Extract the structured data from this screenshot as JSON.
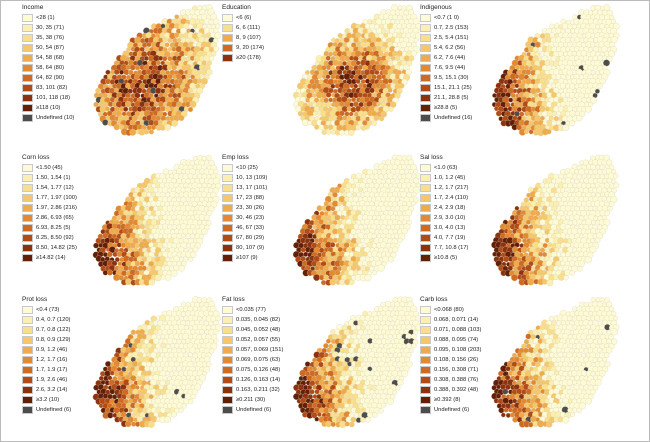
{
  "colors": {
    "undefined": "#4d4d4d",
    "ramp": [
      "#fdfbd6",
      "#fbf0b1",
      "#f9df8c",
      "#f5c76a",
      "#efaa4c",
      "#e28a33",
      "#cf6a22",
      "#b14c16",
      "#8c320f",
      "#641f08"
    ]
  },
  "panels": [
    {
      "title": "Income",
      "gradient": "west-center-dark",
      "items": [
        {
          "label": "<28 (1)",
          "cls": 0
        },
        {
          "label": "30, 35 (71)",
          "cls": 1
        },
        {
          "label": "35, 38 (76)",
          "cls": 2
        },
        {
          "label": "50, 54 (87)",
          "cls": 3
        },
        {
          "label": "54, 58 (68)",
          "cls": 4
        },
        {
          "label": "58, 64 (80)",
          "cls": 5
        },
        {
          "label": "64, 82 (90)",
          "cls": 6
        },
        {
          "label": "83, 101 (82)",
          "cls": 7
        },
        {
          "label": "101, 118 (18)",
          "cls": 8
        },
        {
          "label": "≥118 (10)",
          "cls": 9
        },
        {
          "label": "Undefined (10)",
          "cls": "undefined"
        }
      ]
    },
    {
      "title": "Education",
      "gradient": "center-dark",
      "items": [
        {
          "label": "<6 (6)",
          "cls": 0
        },
        {
          "label": "6, 6 (111)",
          "cls": 2
        },
        {
          "label": "8, 9 (107)",
          "cls": 4
        },
        {
          "label": "9, 20 (174)",
          "cls": 6
        },
        {
          "label": "≥20 (178)",
          "cls": 8
        }
      ]
    },
    {
      "title": "Indigenous",
      "gradient": "west-dark",
      "items": [
        {
          "label": "<0.7 (1 0)",
          "cls": 0
        },
        {
          "label": "0.7, 2.5 (153)",
          "cls": 1
        },
        {
          "label": "2.5, 5.4 (151)",
          "cls": 2
        },
        {
          "label": "5.4, 6.2 (56)",
          "cls": 3
        },
        {
          "label": "6.2, 7.6 (44)",
          "cls": 4
        },
        {
          "label": "7.6, 9.5 (44)",
          "cls": 5
        },
        {
          "label": "9.5, 15.1 (30)",
          "cls": 6
        },
        {
          "label": "15.1, 21.1 (25)",
          "cls": 7
        },
        {
          "label": "21.1, 28.8 (5)",
          "cls": 8
        },
        {
          "label": "≥28.8 (5)",
          "cls": 9
        },
        {
          "label": "Undefined (16)",
          "cls": "undefined"
        }
      ]
    },
    {
      "title": "Corn loss",
      "gradient": "west-dark",
      "items": [
        {
          "label": "<1.50 (45)",
          "cls": 0
        },
        {
          "label": "1.50, 1.54 (1)",
          "cls": 1
        },
        {
          "label": "1.54, 1.77 (12)",
          "cls": 2
        },
        {
          "label": "1.77, 1.97 (100)",
          "cls": 3
        },
        {
          "label": "1.97, 2.86 (216)",
          "cls": 4
        },
        {
          "label": "2.86, 6.93 (65)",
          "cls": 5
        },
        {
          "label": "6.93, 8.25 (5)",
          "cls": 6
        },
        {
          "label": "8.25, 8.50 (92)",
          "cls": 7
        },
        {
          "label": "8.50, 14.82 (25)",
          "cls": 8
        },
        {
          "label": "≥14.82 (14)",
          "cls": 9
        }
      ]
    },
    {
      "title": "Emp loss",
      "gradient": "west-dark",
      "items": [
        {
          "label": "<10 (25)",
          "cls": 0
        },
        {
          "label": "10, 13 (109)",
          "cls": 1
        },
        {
          "label": "13, 17 (101)",
          "cls": 2
        },
        {
          "label": "17, 23 (88)",
          "cls": 3
        },
        {
          "label": "23, 30 (26)",
          "cls": 4
        },
        {
          "label": "30, 46 (23)",
          "cls": 5
        },
        {
          "label": "46, 67 (33)",
          "cls": 6
        },
        {
          "label": "67, 80 (29)",
          "cls": 7
        },
        {
          "label": "80, 107 (9)",
          "cls": 8
        },
        {
          "label": "≥107 (9)",
          "cls": 9
        }
      ]
    },
    {
      "title": "Sal loss",
      "gradient": "west-dark",
      "items": [
        {
          "label": "<1.0 (63)",
          "cls": 0
        },
        {
          "label": "1.0, 1.2 (45)",
          "cls": 1
        },
        {
          "label": "1.2, 1.7 (217)",
          "cls": 2
        },
        {
          "label": "1.7, 2.4 (110)",
          "cls": 3
        },
        {
          "label": "2.4, 2.9 (18)",
          "cls": 4
        },
        {
          "label": "2.9, 3.0 (10)",
          "cls": 5
        },
        {
          "label": "3.0, 4.0 (13)",
          "cls": 6
        },
        {
          "label": "4.0, 7.7 (19)",
          "cls": 7
        },
        {
          "label": "7.7, 10.8 (17)",
          "cls": 8
        },
        {
          "label": "≥10.8 (5)",
          "cls": 9
        }
      ]
    },
    {
      "title": "Prot loss",
      "gradient": "west-dark",
      "items": [
        {
          "label": "<0.4 (73)",
          "cls": 0
        },
        {
          "label": "0.4, 0.7 (120)",
          "cls": 1
        },
        {
          "label": "0.7, 0.8 (122)",
          "cls": 2
        },
        {
          "label": "0.8, 0.9 (129)",
          "cls": 3
        },
        {
          "label": "0.9, 1.2 (46)",
          "cls": 4
        },
        {
          "label": "1.2, 1.7 (16)",
          "cls": 5
        },
        {
          "label": "1.7, 1.9 (17)",
          "cls": 6
        },
        {
          "label": "1.9, 2.6 (46)",
          "cls": 7
        },
        {
          "label": "2.6, 3.2 (14)",
          "cls": 8
        },
        {
          "label": "≥3.2 (10)",
          "cls": 9
        },
        {
          "label": "Undefined (6)",
          "cls": "undefined"
        }
      ]
    },
    {
      "title": "Fat loss",
      "gradient": "west-dark",
      "items": [
        {
          "label": "<0.035 (77)",
          "cls": 0
        },
        {
          "label": "0.035, 0.045 (82)",
          "cls": 1
        },
        {
          "label": "0.045, 0.052 (48)",
          "cls": 2
        },
        {
          "label": "0.052, 0.057 (55)",
          "cls": 3
        },
        {
          "label": "0.057, 0.069 (151)",
          "cls": 4
        },
        {
          "label": "0.069, 0.075 (63)",
          "cls": 5
        },
        {
          "label": "0.075, 0.126 (48)",
          "cls": 6
        },
        {
          "label": "0.126, 0.163 (14)",
          "cls": 7
        },
        {
          "label": "0.163, 0.211 (32)",
          "cls": 8
        },
        {
          "label": "≥0.211 (30)",
          "cls": 9
        },
        {
          "label": "Undefined (6)",
          "cls": "undefined"
        }
      ]
    },
    {
      "title": "Carb loss",
      "gradient": "west-dark",
      "items": [
        {
          "label": "<0.068 (80)",
          "cls": 0
        },
        {
          "label": "0.068, 0.071 (14)",
          "cls": 1
        },
        {
          "label": "0.071, 0.088 (103)",
          "cls": 2
        },
        {
          "label": "0.088, 0.095 (74)",
          "cls": 3
        },
        {
          "label": "0.095, 0.108 (203)",
          "cls": 4
        },
        {
          "label": "0.108, 0.156 (26)",
          "cls": 5
        },
        {
          "label": "0.156, 0.308 (71)",
          "cls": 6
        },
        {
          "label": "0.308, 0.388 (76)",
          "cls": 7
        },
        {
          "label": "0.388, 0.392 (48)",
          "cls": 8
        },
        {
          "label": "≥0.392 (8)",
          "cls": 9
        },
        {
          "label": "Undefined (6)",
          "cls": "undefined"
        }
      ]
    }
  ]
}
